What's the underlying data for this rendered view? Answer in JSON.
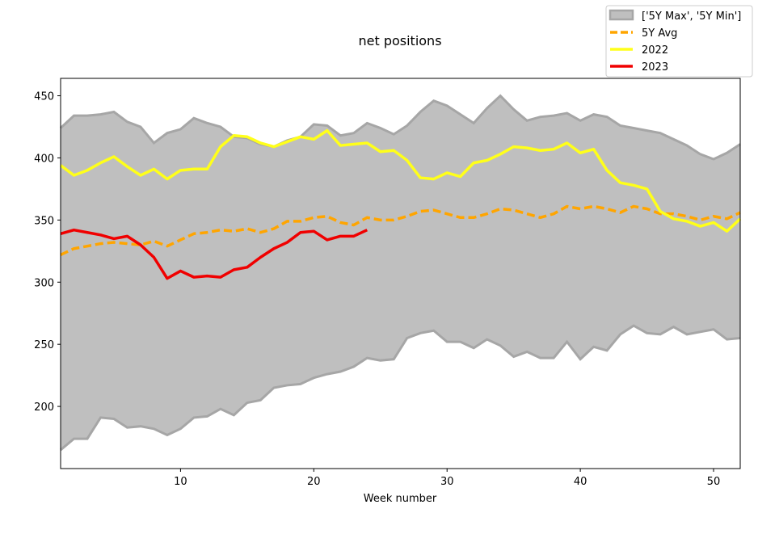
{
  "chart_data": {
    "type": "line",
    "title": "net positions",
    "xlabel": "Week number",
    "ylabel": "",
    "xlim": [
      1,
      52
    ],
    "ylim": [
      150,
      464
    ],
    "xticks": [
      10,
      20,
      30,
      40,
      50
    ],
    "yticks": [
      200,
      250,
      300,
      350,
      400,
      450
    ],
    "grid": false,
    "legend_position": "top-right",
    "colors": {
      "band_fill": "#bfbfbf",
      "band_edge": "#a6a6a6",
      "avg": "#ffa500",
      "y2022": "#ffff1a",
      "y2023": "#f00000"
    },
    "legend": [
      {
        "key": "band",
        "label": "['5Y Max', '5Y Min']"
      },
      {
        "key": "avg",
        "label": "5Y Avg"
      },
      {
        "key": "y2022",
        "label": "2022"
      },
      {
        "key": "y2023",
        "label": "2023"
      }
    ],
    "band": {
      "max": [
        424,
        434,
        434,
        435,
        437,
        429,
        425,
        412,
        420,
        423,
        432,
        428,
        425,
        417,
        416,
        411,
        409,
        414,
        417,
        427,
        426,
        418,
        420,
        428,
        424,
        419,
        426,
        437,
        446,
        442,
        435,
        428,
        440,
        450,
        439,
        430,
        433,
        434,
        436,
        430,
        435,
        433,
        426,
        424,
        422,
        420,
        415,
        410,
        403,
        399,
        404,
        411
      ],
      "min": [
        165,
        174,
        174,
        191,
        190,
        183,
        184,
        182,
        177,
        182,
        191,
        192,
        198,
        193,
        203,
        205,
        215,
        217,
        218,
        223,
        226,
        228,
        232,
        239,
        237,
        238,
        255,
        259,
        261,
        252,
        252,
        247,
        254,
        249,
        240,
        244,
        239,
        239,
        252,
        238,
        248,
        245,
        258,
        265,
        259,
        258,
        264,
        258,
        260,
        262,
        254,
        255
      ]
    },
    "series": [
      {
        "key": "avg",
        "values": [
          322,
          327,
          329,
          331,
          332,
          331,
          330,
          333,
          329,
          334,
          339,
          340,
          342,
          341,
          343,
          340,
          343,
          349,
          349,
          352,
          353,
          348,
          346,
          352,
          350,
          350,
          353,
          357,
          358,
          355,
          352,
          352,
          355,
          359,
          358,
          355,
          352,
          355,
          361,
          359,
          361,
          359,
          356,
          361,
          359,
          355,
          355,
          353,
          350,
          353,
          351,
          356
        ]
      },
      {
        "key": "y2022",
        "values": [
          394,
          386,
          390,
          396,
          401,
          393,
          386,
          391,
          383,
          390,
          391,
          391,
          409,
          418,
          417,
          412,
          409,
          413,
          417,
          415,
          422,
          410,
          411,
          412,
          405,
          406,
          398,
          384,
          383,
          388,
          385,
          396,
          398,
          403,
          409,
          408,
          406,
          407,
          412,
          404,
          407,
          390,
          380,
          378,
          375,
          357,
          351,
          349,
          345,
          348,
          341,
          351
        ]
      },
      {
        "key": "y2023",
        "values": [
          339,
          342,
          340,
          338,
          335,
          337,
          330,
          320,
          303,
          309,
          304,
          305,
          304,
          310,
          312,
          320,
          327,
          332,
          340,
          341,
          334,
          337,
          337,
          342
        ]
      }
    ]
  }
}
